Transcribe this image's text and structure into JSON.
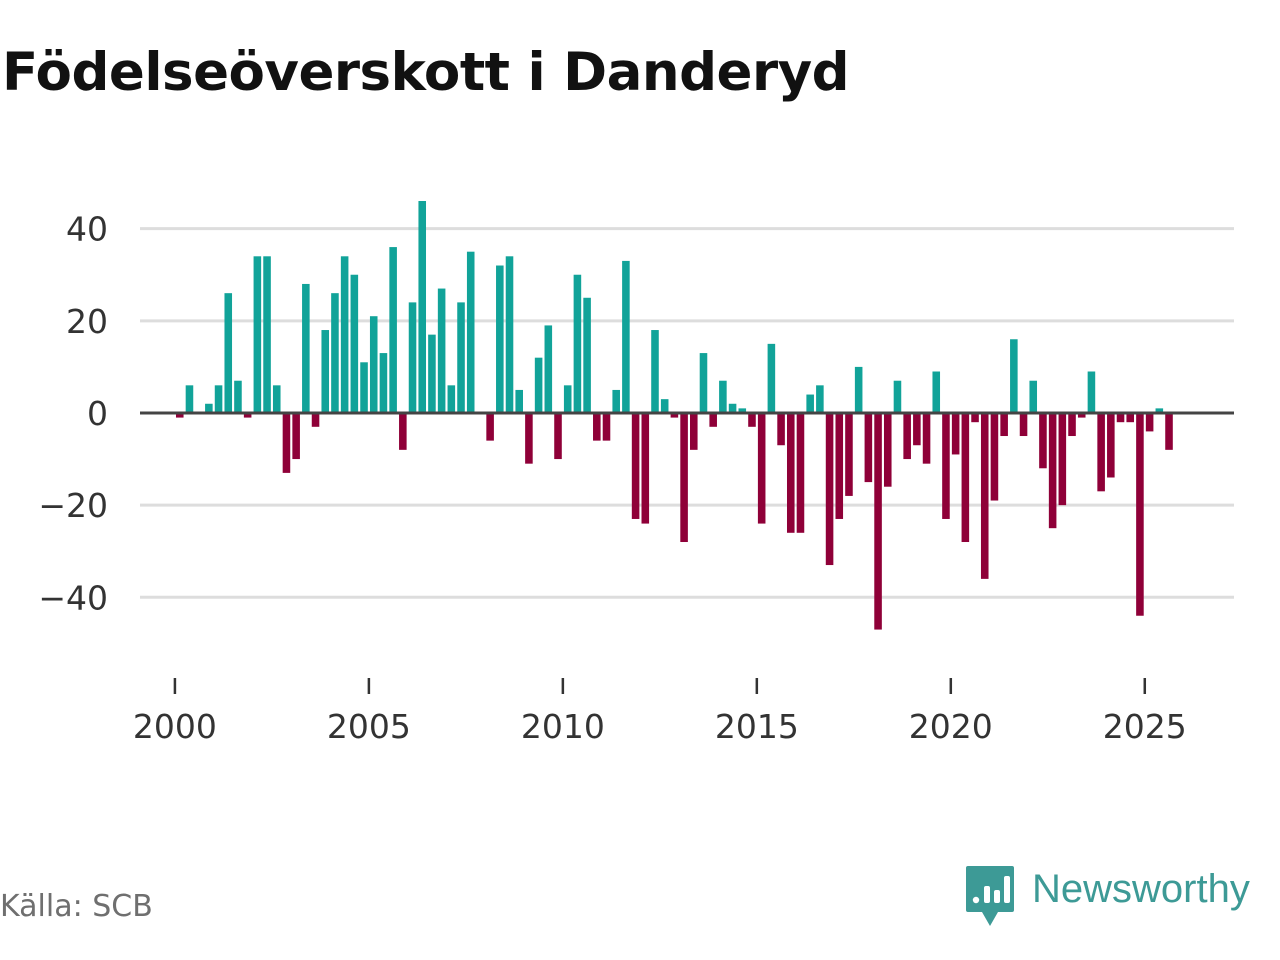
{
  "title": "Födelseöverskott i Danderyd",
  "source": "Källa: SCB",
  "brand": {
    "name": "Newsworthy",
    "logo_icon": "bar-chart-speech-bubble-icon"
  },
  "colors": {
    "positive": "#11a399",
    "negative": "#8f0038",
    "zero_line": "#444444",
    "grid": "#dddddd",
    "brand": "#3d9a96"
  },
  "chart_data": {
    "type": "bar",
    "title": "Födelseöverskott i Danderyd",
    "xlabel": "",
    "ylabel": "",
    "ylim": [
      -51,
      46
    ],
    "xlim": [
      1999.1,
      2027.3
    ],
    "grid": true,
    "yticks": [
      40,
      20,
      0,
      -20,
      -40
    ],
    "ytick_labels": [
      "40",
      "20",
      "0",
      "−20",
      "−40"
    ],
    "xticks": [
      2000,
      2005,
      2010,
      2015,
      2020,
      2025
    ],
    "xtick_labels": [
      "2000",
      "2005",
      "2010",
      "2015",
      "2020",
      "2025"
    ],
    "x": [
      2000.125,
      2000.375,
      2000.625,
      2000.875,
      2001.125,
      2001.375,
      2001.625,
      2001.875,
      2002.125,
      2002.375,
      2002.625,
      2002.875,
      2003.125,
      2003.375,
      2003.625,
      2003.875,
      2004.125,
      2004.375,
      2004.625,
      2004.875,
      2005.125,
      2005.375,
      2005.625,
      2005.875,
      2006.125,
      2006.375,
      2006.625,
      2006.875,
      2007.125,
      2007.375,
      2007.625,
      2007.875,
      2008.125,
      2008.375,
      2008.625,
      2008.875,
      2009.125,
      2009.375,
      2009.625,
      2009.875,
      2010.125,
      2010.375,
      2010.625,
      2010.875,
      2011.125,
      2011.375,
      2011.625,
      2011.875,
      2012.125,
      2012.375,
      2012.625,
      2012.875,
      2013.125,
      2013.375,
      2013.625,
      2013.875,
      2014.125,
      2014.375,
      2014.625,
      2014.875,
      2015.125,
      2015.375,
      2015.625,
      2015.875,
      2016.125,
      2016.375,
      2016.625,
      2016.875,
      2017.125,
      2017.375,
      2017.625,
      2017.875,
      2018.125,
      2018.375,
      2018.625,
      2018.875,
      2019.125,
      2019.375,
      2019.625,
      2019.875,
      2020.125,
      2020.375,
      2020.625,
      2020.875,
      2021.125,
      2021.375,
      2021.625,
      2021.875,
      2022.125,
      2022.375,
      2022.625,
      2022.875,
      2023.125,
      2023.375,
      2023.625,
      2023.875,
      2024.125,
      2024.375,
      2024.625,
      2024.875,
      2025.125,
      2025.375,
      2025.625,
      2025.875
    ],
    "values": [
      -1,
      6,
      0,
      2,
      6,
      26,
      7,
      -1,
      34,
      34,
      6,
      -13,
      -10,
      28,
      -3,
      18,
      26,
      34,
      30,
      11,
      21,
      13,
      36,
      -8,
      24,
      46,
      17,
      27,
      6,
      24,
      35,
      0,
      -6,
      32,
      34,
      5,
      -11,
      12,
      19,
      -10,
      6,
      30,
      25,
      -6,
      -6,
      5,
      33,
      -23,
      -24,
      18,
      3,
      -1,
      -28,
      -8,
      13,
      -3,
      7,
      2,
      1,
      -3,
      -24,
      15,
      -7,
      -26,
      -26,
      4,
      6,
      -33,
      -23,
      -18,
      10,
      -15,
      -47,
      -16,
      7,
      -10,
      -7,
      -11,
      9,
      -23,
      -9,
      -28,
      -2,
      -36,
      -19,
      -5,
      16,
      -5,
      7,
      -12,
      -25,
      -20,
      -5,
      -1,
      9,
      -17,
      -14,
      -2,
      -2,
      -44,
      -4,
      1,
      -8,
      0
    ]
  }
}
